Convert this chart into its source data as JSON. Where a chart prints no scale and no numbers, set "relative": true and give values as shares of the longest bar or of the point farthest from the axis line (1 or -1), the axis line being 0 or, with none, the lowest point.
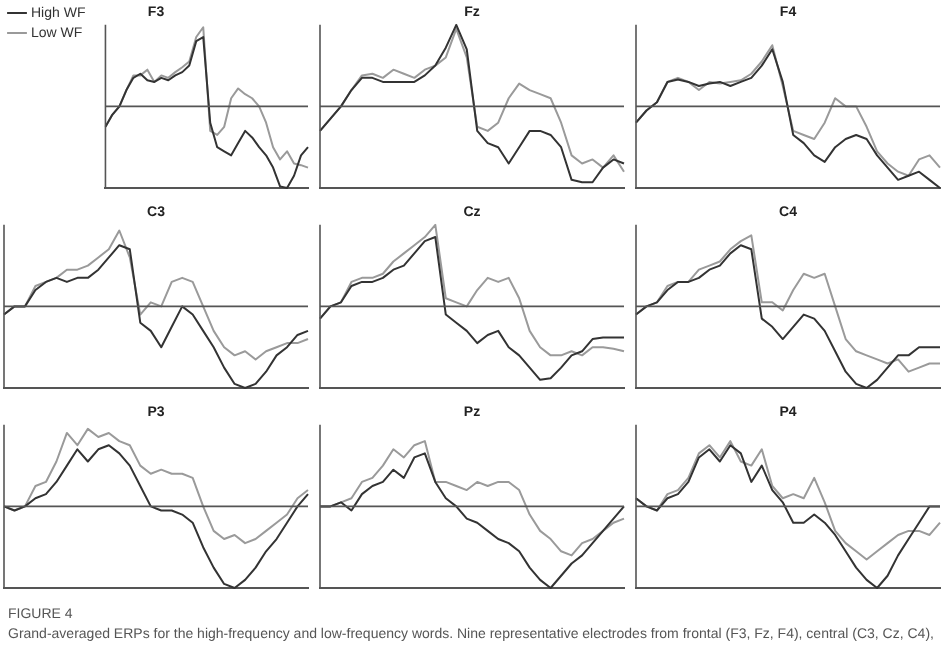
{
  "chart_data": [
    {
      "type": "line",
      "title": "F3",
      "relative": true,
      "legend": "top left",
      "annotations": [
        "FIGURE 4",
        "Grand-averaged ERPs for the high-frequency and low-frequency words. Nine representative electrodes from frontal (F3, Fz, F4), central (C3, Cz, C4),"
      ],
      "categories": [
        null,
        null,
        null,
        null,
        null,
        null,
        null,
        null,
        null,
        null,
        null,
        null,
        null,
        null,
        null,
        null,
        null,
        null,
        null,
        null,
        null,
        null,
        null,
        null,
        null,
        null,
        null,
        null,
        null,
        null
      ],
      "series": [
        {
          "name": "High WF",
          "color": "#333333",
          "values": [
            -0.25,
            -0.1,
            0.0,
            0.2,
            0.35,
            0.4,
            0.32,
            0.3,
            0.35,
            0.32,
            0.38,
            0.42,
            0.5,
            0.8,
            0.85,
            -0.2,
            -0.5,
            -0.55,
            -0.6,
            -0.45,
            -0.3,
            -0.38,
            -0.5,
            -0.6,
            -0.75,
            -0.98,
            -1.0,
            -0.85,
            -0.6,
            -0.5
          ]
        },
        {
          "name": "Low WF",
          "color": "#9a9a9a",
          "values": [
            -0.25,
            -0.1,
            0.0,
            0.2,
            0.38,
            0.38,
            0.45,
            0.3,
            0.38,
            0.35,
            0.42,
            0.48,
            0.55,
            0.85,
            0.97,
            -0.3,
            -0.35,
            -0.25,
            0.1,
            0.22,
            0.15,
            0.1,
            0.0,
            -0.2,
            -0.5,
            -0.65,
            -0.55,
            -0.7,
            -0.72,
            -0.75
          ]
        }
      ]
    },
    {
      "type": "line",
      "title": "Fz",
      "relative": true,
      "categories": [
        null,
        null,
        null,
        null,
        null,
        null,
        null,
        null,
        null,
        null,
        null,
        null,
        null,
        null,
        null,
        null,
        null,
        null,
        null,
        null,
        null,
        null,
        null,
        null,
        null,
        null,
        null,
        null,
        null,
        null
      ],
      "series": [
        {
          "color": "#333333",
          "values": [
            -0.3,
            -0.15,
            0.0,
            0.2,
            0.35,
            0.35,
            0.3,
            0.3,
            0.3,
            0.3,
            0.38,
            0.5,
            0.72,
            1.0,
            0.7,
            -0.3,
            -0.45,
            -0.5,
            -0.7,
            -0.5,
            -0.3,
            -0.3,
            -0.35,
            -0.5,
            -0.9,
            -0.93,
            -0.93,
            -0.75,
            -0.65,
            -0.7
          ]
        },
        {
          "color": "#9a9a9a",
          "values": [
            -0.3,
            -0.15,
            0.0,
            0.2,
            0.38,
            0.4,
            0.35,
            0.45,
            0.4,
            0.35,
            0.45,
            0.5,
            0.6,
            0.95,
            0.6,
            -0.25,
            -0.3,
            -0.2,
            0.1,
            0.28,
            0.2,
            0.15,
            0.1,
            -0.2,
            -0.6,
            -0.7,
            -0.65,
            -0.75,
            -0.6,
            -0.8
          ]
        }
      ]
    },
    {
      "type": "line",
      "title": "F4",
      "relative": true,
      "categories": [
        null,
        null,
        null,
        null,
        null,
        null,
        null,
        null,
        null,
        null,
        null,
        null,
        null,
        null,
        null,
        null,
        null,
        null,
        null,
        null,
        null,
        null,
        null,
        null,
        null,
        null,
        null,
        null,
        null,
        null
      ],
      "series": [
        {
          "color": "#333333",
          "values": [
            -0.2,
            -0.05,
            0.05,
            0.3,
            0.33,
            0.3,
            0.25,
            0.28,
            0.3,
            0.25,
            0.3,
            0.35,
            0.5,
            0.7,
            0.3,
            -0.35,
            -0.45,
            -0.6,
            -0.68,
            -0.5,
            -0.4,
            -0.35,
            -0.4,
            -0.6,
            -0.75,
            -0.9,
            -0.85,
            -0.8,
            -0.9,
            -1.0
          ]
        },
        {
          "color": "#9a9a9a",
          "values": [
            -0.2,
            -0.05,
            0.05,
            0.3,
            0.35,
            0.3,
            0.2,
            0.3,
            0.28,
            0.3,
            0.32,
            0.4,
            0.55,
            0.75,
            0.25,
            -0.3,
            -0.35,
            -0.4,
            -0.2,
            0.1,
            0.0,
            0.0,
            -0.25,
            -0.55,
            -0.7,
            -0.8,
            -0.85,
            -0.65,
            -0.6,
            -0.75
          ]
        }
      ]
    },
    {
      "type": "line",
      "title": "C3",
      "relative": true,
      "categories": [
        null,
        null,
        null,
        null,
        null,
        null,
        null,
        null,
        null,
        null,
        null,
        null,
        null,
        null,
        null,
        null,
        null,
        null,
        null,
        null,
        null,
        null,
        null,
        null,
        null,
        null,
        null,
        null,
        null,
        null
      ],
      "series": [
        {
          "color": "#333333",
          "values": [
            -0.1,
            0.0,
            0.0,
            0.2,
            0.3,
            0.35,
            0.3,
            0.35,
            0.35,
            0.45,
            0.6,
            0.75,
            0.7,
            -0.2,
            -0.3,
            -0.5,
            -0.25,
            0.0,
            -0.1,
            -0.3,
            -0.5,
            -0.75,
            -0.95,
            -1.0,
            -0.95,
            -0.8,
            -0.6,
            -0.5,
            -0.35,
            -0.3
          ]
        },
        {
          "color": "#9a9a9a",
          "values": [
            -0.1,
            0.0,
            0.0,
            0.25,
            0.3,
            0.35,
            0.45,
            0.45,
            0.5,
            0.6,
            0.7,
            0.93,
            0.6,
            -0.1,
            0.05,
            0.0,
            0.3,
            0.35,
            0.3,
            0.0,
            -0.3,
            -0.5,
            -0.6,
            -0.55,
            -0.65,
            -0.55,
            -0.5,
            -0.45,
            -0.45,
            -0.4
          ]
        }
      ]
    },
    {
      "type": "line",
      "title": "Cz",
      "relative": true,
      "categories": [
        null,
        null,
        null,
        null,
        null,
        null,
        null,
        null,
        null,
        null,
        null,
        null,
        null,
        null,
        null,
        null,
        null,
        null,
        null,
        null,
        null,
        null,
        null,
        null,
        null,
        null,
        null,
        null,
        null,
        null
      ],
      "series": [
        {
          "color": "#333333",
          "values": [
            -0.15,
            0.0,
            0.05,
            0.25,
            0.3,
            0.3,
            0.35,
            0.45,
            0.5,
            0.65,
            0.8,
            0.85,
            -0.1,
            -0.2,
            -0.3,
            -0.45,
            -0.35,
            -0.3,
            -0.5,
            -0.6,
            -0.75,
            -0.9,
            -0.88,
            -0.75,
            -0.6,
            -0.55,
            -0.4,
            -0.38,
            -0.38,
            -0.38
          ]
        },
        {
          "color": "#9a9a9a",
          "values": [
            -0.15,
            0.0,
            0.05,
            0.3,
            0.35,
            0.35,
            0.4,
            0.55,
            0.65,
            0.75,
            0.85,
            1.0,
            0.1,
            0.05,
            0.0,
            0.2,
            0.35,
            0.3,
            0.35,
            0.1,
            -0.3,
            -0.5,
            -0.6,
            -0.6,
            -0.55,
            -0.6,
            -0.5,
            -0.5,
            -0.52,
            -0.55
          ]
        }
      ]
    },
    {
      "type": "line",
      "title": "C4",
      "relative": true,
      "categories": [
        null,
        null,
        null,
        null,
        null,
        null,
        null,
        null,
        null,
        null,
        null,
        null,
        null,
        null,
        null,
        null,
        null,
        null,
        null,
        null,
        null,
        null,
        null,
        null,
        null,
        null,
        null,
        null,
        null,
        null
      ],
      "series": [
        {
          "color": "#333333",
          "values": [
            -0.1,
            0.0,
            0.05,
            0.2,
            0.3,
            0.3,
            0.35,
            0.45,
            0.5,
            0.65,
            0.75,
            0.7,
            -0.15,
            -0.25,
            -0.4,
            -0.25,
            -0.1,
            -0.15,
            -0.3,
            -0.55,
            -0.8,
            -0.95,
            -1.0,
            -0.9,
            -0.75,
            -0.6,
            -0.6,
            -0.5,
            -0.5,
            -0.5
          ]
        },
        {
          "color": "#9a9a9a",
          "values": [
            -0.1,
            0.0,
            0.05,
            0.25,
            0.3,
            0.3,
            0.45,
            0.5,
            0.55,
            0.7,
            0.8,
            0.87,
            0.05,
            0.05,
            -0.05,
            0.2,
            0.4,
            0.35,
            0.4,
            0.0,
            -0.4,
            -0.55,
            -0.6,
            -0.65,
            -0.7,
            -0.65,
            -0.8,
            -0.75,
            -0.7,
            -0.7
          ]
        }
      ]
    },
    {
      "type": "line",
      "title": "P3",
      "relative": true,
      "categories": [
        null,
        null,
        null,
        null,
        null,
        null,
        null,
        null,
        null,
        null,
        null,
        null,
        null,
        null,
        null,
        null,
        null,
        null,
        null,
        null,
        null,
        null,
        null,
        null,
        null,
        null,
        null,
        null,
        null,
        null
      ],
      "series": [
        {
          "color": "#333333",
          "values": [
            0.0,
            -0.05,
            0.0,
            0.1,
            0.15,
            0.3,
            0.5,
            0.7,
            0.55,
            0.7,
            0.75,
            0.65,
            0.5,
            0.25,
            0.0,
            -0.05,
            -0.05,
            -0.1,
            -0.2,
            -0.5,
            -0.75,
            -0.95,
            -1.0,
            -0.9,
            -0.75,
            -0.55,
            -0.4,
            -0.2,
            0.0,
            0.15
          ]
        },
        {
          "color": "#9a9a9a",
          "values": [
            0.0,
            -0.05,
            0.0,
            0.25,
            0.3,
            0.55,
            0.9,
            0.75,
            0.95,
            0.85,
            0.9,
            0.8,
            0.75,
            0.5,
            0.4,
            0.45,
            0.4,
            0.4,
            0.35,
            0.0,
            -0.3,
            -0.4,
            -0.35,
            -0.45,
            -0.4,
            -0.3,
            -0.2,
            -0.1,
            0.1,
            0.2
          ]
        }
      ]
    },
    {
      "type": "line",
      "title": "Pz",
      "relative": true,
      "categories": [
        null,
        null,
        null,
        null,
        null,
        null,
        null,
        null,
        null,
        null,
        null,
        null,
        null,
        null,
        null,
        null,
        null,
        null,
        null,
        null,
        null,
        null,
        null,
        null,
        null,
        null,
        null,
        null,
        null,
        null
      ],
      "series": [
        {
          "color": "#333333",
          "values": [
            0.0,
            0.0,
            0.05,
            -0.05,
            0.15,
            0.25,
            0.3,
            0.45,
            0.35,
            0.6,
            0.65,
            0.3,
            0.1,
            0.0,
            -0.15,
            -0.2,
            -0.3,
            -0.4,
            -0.45,
            -0.55,
            -0.75,
            -0.9,
            -1.0,
            -0.85,
            -0.7,
            -0.6,
            -0.45,
            -0.3,
            -0.15,
            0.0
          ]
        },
        {
          "color": "#9a9a9a",
          "values": [
            0.0,
            0.0,
            0.05,
            0.1,
            0.3,
            0.35,
            0.5,
            0.7,
            0.6,
            0.75,
            0.8,
            0.3,
            0.3,
            0.25,
            0.2,
            0.3,
            0.25,
            0.3,
            0.3,
            0.2,
            -0.1,
            -0.3,
            -0.4,
            -0.55,
            -0.6,
            -0.45,
            -0.4,
            -0.3,
            -0.2,
            -0.15
          ]
        }
      ]
    },
    {
      "type": "line",
      "title": "P4",
      "relative": true,
      "categories": [
        null,
        null,
        null,
        null,
        null,
        null,
        null,
        null,
        null,
        null,
        null,
        null,
        null,
        null,
        null,
        null,
        null,
        null,
        null,
        null,
        null,
        null,
        null,
        null,
        null,
        null,
        null,
        null,
        null,
        null
      ],
      "series": [
        {
          "color": "#333333",
          "values": [
            0.1,
            0.0,
            -0.05,
            0.1,
            0.15,
            0.3,
            0.6,
            0.7,
            0.55,
            0.75,
            0.65,
            0.3,
            0.5,
            0.2,
            0.05,
            -0.2,
            -0.2,
            -0.1,
            -0.2,
            -0.35,
            -0.55,
            -0.75,
            -0.9,
            -1.0,
            -0.85,
            -0.6,
            -0.4,
            -0.2,
            0.0,
            0.0
          ]
        },
        {
          "color": "#9a9a9a",
          "values": [
            0.1,
            0.0,
            -0.05,
            0.15,
            0.2,
            0.35,
            0.65,
            0.75,
            0.6,
            0.8,
            0.55,
            0.5,
            0.7,
            0.25,
            0.1,
            0.15,
            0.1,
            0.35,
            0.05,
            -0.3,
            -0.45,
            -0.55,
            -0.65,
            -0.55,
            -0.45,
            -0.35,
            -0.3,
            -0.3,
            -0.35,
            -0.2
          ]
        }
      ]
    }
  ]
}
